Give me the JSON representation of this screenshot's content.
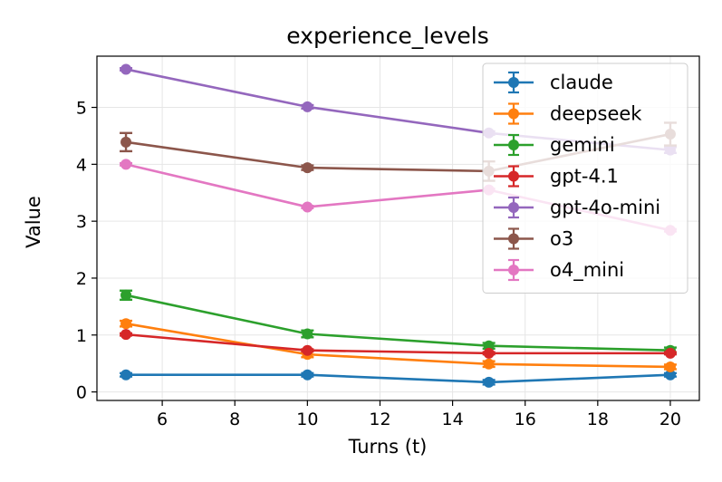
{
  "chart_data": {
    "type": "line",
    "title": "experience_levels",
    "xlabel": "Turns (t)",
    "ylabel": "Value",
    "xlim": [
      4.2,
      20.8
    ],
    "ylim": [
      -0.15,
      5.9
    ],
    "xticks": [
      6,
      8,
      10,
      12,
      14,
      16,
      18,
      20
    ],
    "yticks": [
      0,
      1,
      2,
      3,
      4,
      5
    ],
    "grid": true,
    "legend_position": "top-right",
    "x": [
      5,
      10,
      15,
      20
    ],
    "series": [
      {
        "name": "claude",
        "color": "#1f77b4",
        "values": [
          0.3,
          0.3,
          0.17,
          0.3
        ],
        "errors": [
          0.03,
          0.03,
          0.04,
          0.03
        ]
      },
      {
        "name": "deepseek",
        "color": "#ff7f0e",
        "values": [
          1.2,
          0.66,
          0.49,
          0.44
        ],
        "errors": [
          0.05,
          0.05,
          0.05,
          0.04
        ]
      },
      {
        "name": "gemini",
        "color": "#2ca02c",
        "values": [
          1.7,
          1.02,
          0.81,
          0.73
        ],
        "errors": [
          0.08,
          0.06,
          0.05,
          0.05
        ]
      },
      {
        "name": "gpt-4.1",
        "color": "#d62728",
        "values": [
          1.01,
          0.73,
          0.68,
          0.68
        ],
        "errors": [
          0.02,
          0.02,
          0.02,
          0.02
        ]
      },
      {
        "name": "gpt-4o-mini",
        "color": "#9467bd",
        "values": [
          5.67,
          5.01,
          4.55,
          4.25
        ],
        "errors": [
          0.02,
          0.03,
          0.03,
          0.05
        ]
      },
      {
        "name": "o3",
        "color": "#8c564b",
        "values": [
          4.39,
          3.94,
          3.88,
          4.53
        ],
        "errors": [
          0.16,
          0.04,
          0.17,
          0.2
        ]
      },
      {
        "name": "o4_mini",
        "color": "#e377c2",
        "values": [
          4.0,
          3.25,
          3.55,
          2.84
        ],
        "errors": [
          0.02,
          0.02,
          0.02,
          0.02
        ]
      }
    ]
  }
}
